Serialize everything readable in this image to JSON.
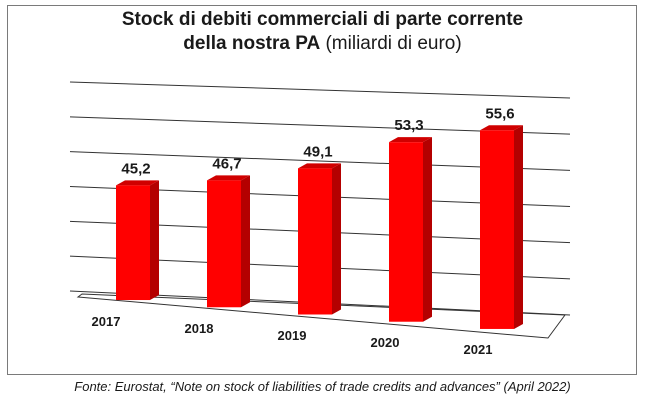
{
  "title": {
    "line1": "Stock di debiti commerciali di parte corrente",
    "line2_bold": "della nostra PA",
    "line2_rest": " (miliardi di euro)"
  },
  "source": "Fonte: Eurostat, “Note on stock of liabilities of trade credits and advances” (April 2022)",
  "colors": {
    "bar_front": "#ff0000",
    "bar_side": "#b40000",
    "bar_top": "#d00000",
    "grid": "#333333"
  },
  "chart_data": {
    "type": "bar",
    "style": "3d-perspective",
    "title": "Stock di debiti commerciali di parte corrente della nostra PA (miliardi di euro)",
    "categories": [
      "2017",
      "2018",
      "2019",
      "2020",
      "2021"
    ],
    "values": [
      45.2,
      46.7,
      49.1,
      53.3,
      55.6
    ],
    "value_labels": [
      "45,2",
      "46,7",
      "49,1",
      "53,3",
      "55,6"
    ],
    "ylim": [
      30,
      60
    ],
    "grid": true,
    "legend": "none"
  }
}
